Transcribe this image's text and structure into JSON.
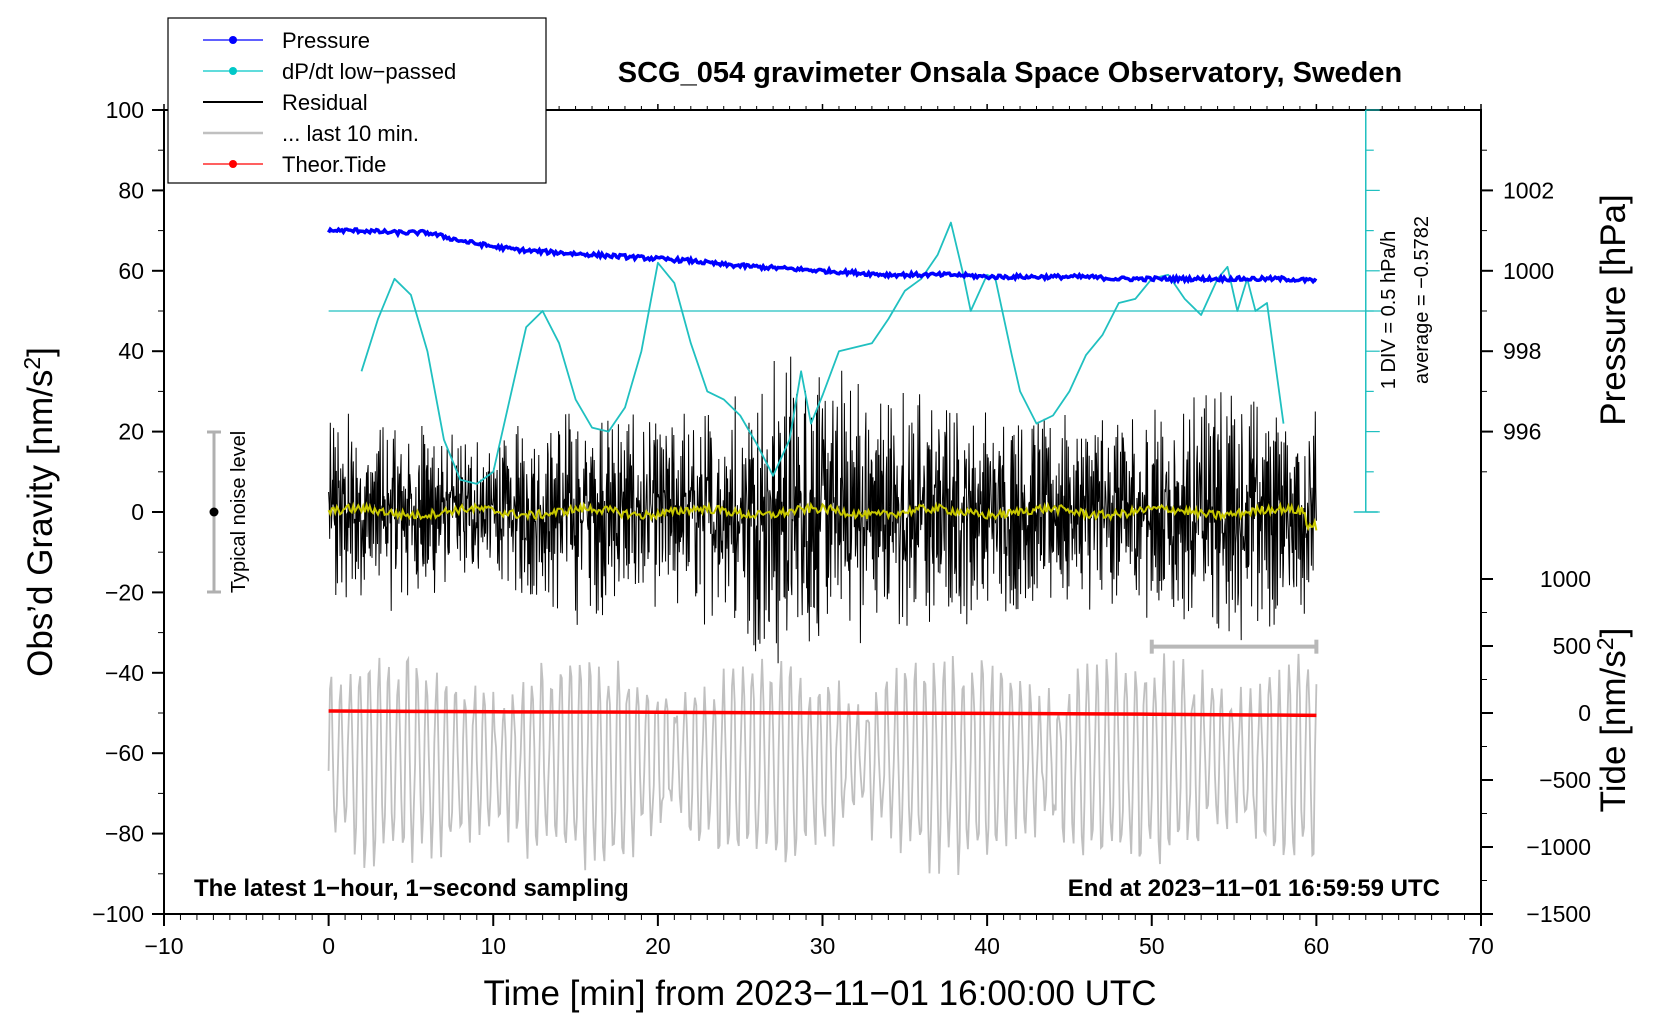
{
  "chart_data": {
    "type": "line",
    "title": "SCG_054 gravimeter Onsala Space Observatory, Sweden",
    "xlabel": "Time [min] from 2023−11−01 16:00:00 UTC",
    "ylabel_left": "Obs’d Gravity [nm/s",
    "ylabel_left_sup": "2",
    "ylabel_left_end": "]",
    "ylabel_pressure": "Pressure [hPa]",
    "ylabel_tide": "Tide [nm/s",
    "ylabel_tide_sup": "2",
    "ylabel_tide_end": "]",
    "xlim": [
      -10,
      70
    ],
    "ylim_left": [
      -100,
      100
    ],
    "x_ticks": [
      "−10",
      "0",
      "10",
      "20",
      "30",
      "40",
      "50",
      "60",
      "70"
    ],
    "x_tick_values": [
      -10,
      0,
      10,
      20,
      30,
      40,
      50,
      60,
      70
    ],
    "y_left_ticks": [
      "100",
      "80",
      "60",
      "40",
      "20",
      "0",
      "−20",
      "−40",
      "−60",
      "−80",
      "−100"
    ],
    "y_left_tick_values": [
      100,
      80,
      60,
      40,
      20,
      0,
      -20,
      -40,
      -60,
      -80,
      -100
    ],
    "pressure_ticks": [
      "1002",
      "1000",
      "998",
      "996"
    ],
    "pressure_tick_values": [
      1002,
      1000,
      998,
      996
    ],
    "pressure_range_hpa": [
      994,
      1004
    ],
    "tide_ticks": [
      "1000",
      "500",
      "0",
      "−500",
      "−1000",
      "−1500"
    ],
    "tide_tick_values": [
      1000,
      500,
      0,
      -500,
      -1000,
      -1500
    ],
    "tide_range": [
      -1500,
      1000
    ],
    "legend": [
      {
        "label": "Pressure",
        "color": "#0000ff",
        "marker": true
      },
      {
        "label": "dP/dt low−passed",
        "color": "#00c8c8",
        "marker": true
      },
      {
        "label": "Residual",
        "color": "#000000",
        "marker": false
      },
      {
        "label": "... last 10 min.",
        "color": "#c0c0c0",
        "marker": false
      },
      {
        "label": "Theor.Tide",
        "color": "#ff0000",
        "marker": true
      }
    ],
    "colors": {
      "pressure": "#0000ff",
      "dpdt": "#20c0c0",
      "residual": "#000000",
      "residual_smooth": "#c8c800",
      "last10": "#c0c0c0",
      "tide": "#ff0000",
      "noise": "#b0b0b0"
    },
    "annotations": {
      "noise_level": "Typical noise level",
      "noise_range": [
        -20,
        20
      ],
      "dpdt_scale": "1 DIV = 0.5 hPa/h",
      "dpdt_average": "average = −0.5782",
      "dpdt_zero_line_gravity": 50,
      "bottom_left": "The latest 1−hour, 1−second sampling",
      "bottom_right": "End at 2023−11−01 16:59:59 UTC",
      "last10_bracket_min": [
        50,
        60
      ]
    },
    "series": [
      {
        "name": "Pressure",
        "unit": "hPa",
        "x": [
          0,
          2,
          4,
          6,
          8,
          10,
          12,
          14,
          16,
          18,
          20,
          22,
          24,
          26,
          28,
          30,
          32,
          34,
          36,
          38,
          40,
          42,
          44,
          46,
          48,
          50,
          52,
          54,
          56,
          58,
          60
        ],
        "values": [
          1001.0,
          1001.0,
          1000.95,
          1000.95,
          1000.75,
          1000.6,
          1000.5,
          1000.45,
          1000.4,
          1000.35,
          1000.3,
          1000.25,
          1000.15,
          1000.1,
          1000.05,
          1000.0,
          999.95,
          999.9,
          999.9,
          999.9,
          999.85,
          999.85,
          999.85,
          999.85,
          999.8,
          999.8,
          999.8,
          999.8,
          999.8,
          999.8,
          999.75
        ]
      },
      {
        "name": "dP/dt low-passed",
        "unit": "gravity-axis position",
        "x": [
          2,
          3,
          4,
          5,
          6,
          7,
          8,
          9,
          10,
          11,
          12,
          13,
          14,
          15,
          16,
          17,
          18,
          19,
          20,
          21,
          22,
          23,
          24,
          25,
          26,
          27,
          28,
          28.7,
          29.3,
          30,
          31,
          32,
          33,
          34,
          35,
          36,
          37,
          37.8,
          38.5,
          39,
          40,
          40.5,
          41.5,
          42,
          43,
          44,
          45,
          46,
          47,
          48,
          49,
          50,
          51,
          52,
          53,
          54,
          54.6,
          55.2,
          55.8,
          56.3,
          57,
          58
        ],
        "values": [
          35,
          48,
          58,
          54,
          40,
          18,
          8,
          7,
          10,
          28,
          46,
          50,
          42,
          28,
          21,
          20,
          26,
          40,
          62,
          57,
          42,
          30,
          28,
          24,
          17,
          9,
          18,
          35,
          22,
          29,
          40,
          41,
          42,
          48,
          55,
          58,
          64,
          72,
          60,
          50,
          59,
          58,
          39,
          30,
          22,
          24,
          30,
          39,
          44,
          52,
          53,
          58,
          59,
          53,
          49,
          58,
          61,
          50,
          58,
          50,
          52,
          22
        ]
      },
      {
        "name": "Residual",
        "unit": "nm/s2",
        "x_range": [
          0,
          60
        ],
        "note": "1-second sampled residual, oscillating roughly between -35 and +38 nm/s2",
        "envelope": [
          {
            "x": 0,
            "amp": 20
          },
          {
            "x": 5,
            "amp": 18
          },
          {
            "x": 10,
            "amp": 14
          },
          {
            "x": 15,
            "amp": 22
          },
          {
            "x": 20,
            "amp": 18
          },
          {
            "x": 25,
            "amp": 24
          },
          {
            "x": 28,
            "amp": 32
          },
          {
            "x": 30,
            "amp": 28
          },
          {
            "x": 35,
            "amp": 24
          },
          {
            "x": 40,
            "amp": 20
          },
          {
            "x": 45,
            "amp": 18
          },
          {
            "x": 50,
            "amp": 20
          },
          {
            "x": 55,
            "amp": 24
          },
          {
            "x": 60,
            "amp": 20
          }
        ]
      },
      {
        "name": "... last 10 min.",
        "unit": "nm/s2",
        "x_range": [
          0,
          60
        ],
        "note": "grey trace of last 10 minutes, oscillating around -60 nm/s2 with amplitude up to about 30"
      },
      {
        "name": "Theor.Tide",
        "unit": "nm/s2 (gravity-axis position)",
        "x": [
          0,
          10,
          20,
          30,
          40,
          50,
          60
        ],
        "values": [
          -49.5,
          -49.7,
          -49.8,
          -50.0,
          -50.1,
          -50.3,
          -50.6
        ]
      }
    ]
  }
}
